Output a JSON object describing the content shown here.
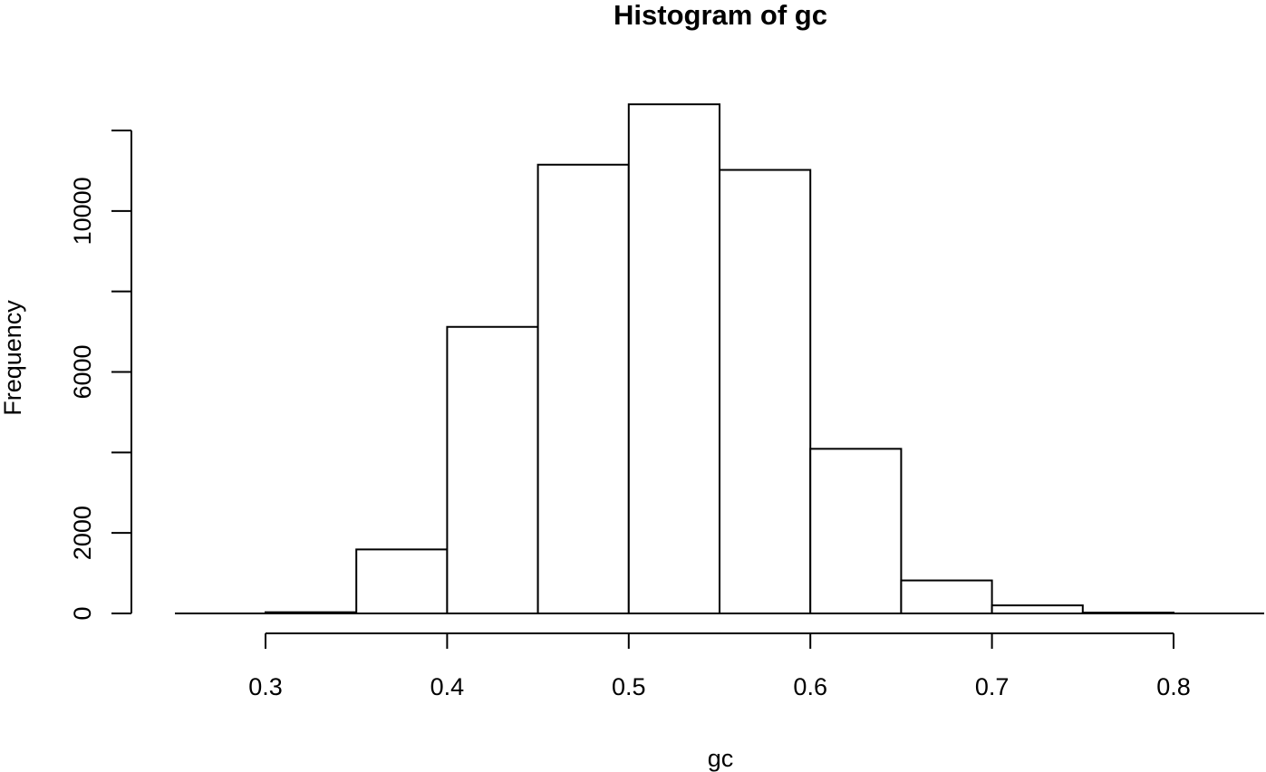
{
  "chart_data": {
    "type": "bar",
    "title": "Histogram of gc",
    "xlabel": "gc",
    "ylabel": "Frequency",
    "bins": [
      {
        "x0": 0.3,
        "x1": 0.35,
        "count": 30
      },
      {
        "x0": 0.35,
        "x1": 0.4,
        "count": 1590
      },
      {
        "x0": 0.4,
        "x1": 0.45,
        "count": 7120
      },
      {
        "x0": 0.45,
        "x1": 0.5,
        "count": 11150
      },
      {
        "x0": 0.5,
        "x1": 0.55,
        "count": 12650
      },
      {
        "x0": 0.55,
        "x1": 0.6,
        "count": 11020
      },
      {
        "x0": 0.6,
        "x1": 0.65,
        "count": 4090
      },
      {
        "x0": 0.65,
        "x1": 0.7,
        "count": 820
      },
      {
        "x0": 0.7,
        "x1": 0.75,
        "count": 200
      },
      {
        "x0": 0.75,
        "x1": 0.8,
        "count": 20
      }
    ],
    "xlim": [
      0.25,
      0.85
    ],
    "ylim": [
      0,
      12000
    ],
    "x_ticks": [
      0.3,
      0.4,
      0.5,
      0.6,
      0.7,
      0.8
    ],
    "x_tick_labels": [
      "0.3",
      "0.4",
      "0.5",
      "0.6",
      "0.7",
      "0.8"
    ],
    "y_ticks": [
      0,
      2000,
      4000,
      6000,
      8000,
      10000,
      12000
    ],
    "y_tick_labels": [
      "0",
      "2000",
      "",
      "6000",
      "",
      "10000",
      ""
    ],
    "grid": false,
    "bar_fill": "#ffffff",
    "bar_stroke": "#000000"
  }
}
